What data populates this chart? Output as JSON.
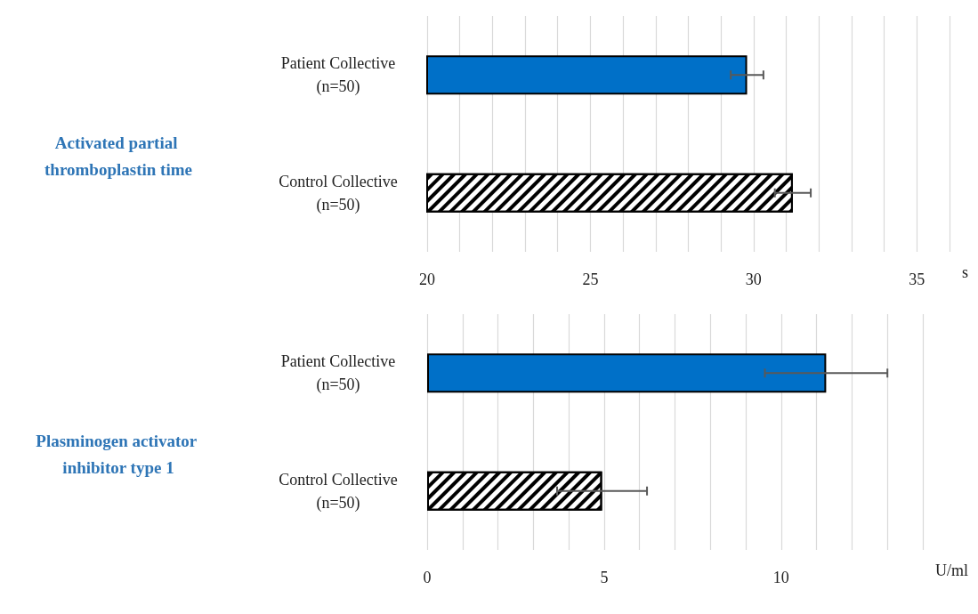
{
  "chart_data": [
    {
      "type": "bar",
      "orientation": "horizontal",
      "title": "Activated partial thromboplastin time",
      "xlabel": "s",
      "categories": [
        "Patient Collective\n(n=50)",
        "Control Collective\n(n=50)"
      ],
      "values": [
        29.8,
        31.2
      ],
      "errors": [
        0.5,
        0.55
      ],
      "colors": [
        "#0070c8",
        "#000000"
      ],
      "xlim": [
        20,
        36
      ],
      "xticks": [
        20,
        {
          "value": 21,
          "label": null
        },
        {
          "value": 22,
          "label": null
        },
        {
          "value": 23,
          "label": null
        },
        {
          "value": 24,
          "label": null
        },
        25,
        {
          "value": 26,
          "label": null
        },
        {
          "value": 27,
          "label": null
        },
        {
          "value": 28,
          "label": null
        },
        {
          "value": 29,
          "label": null
        },
        30,
        {
          "value": 31,
          "label": null
        },
        {
          "value": 32,
          "label": null
        },
        {
          "value": 33,
          "label": null
        },
        {
          "value": 34,
          "label": null
        },
        35,
        {
          "value": 36,
          "label": null
        }
      ],
      "grid": "x"
    },
    {
      "type": "bar",
      "orientation": "horizontal",
      "title": "Plasminogen activator inhibitor type 1",
      "xlabel": "U/ml",
      "categories": [
        "Patient Collective\n(n=50)",
        "Control Collective\n(n=50)"
      ],
      "values": [
        11.27,
        4.94
      ],
      "errors": [
        1.73,
        1.27
      ],
      "colors": [
        "#0070c8",
        "#000000"
      ],
      "xlim": [
        0,
        14
      ],
      "xticks": [
        0,
        {
          "value": 1,
          "label": null
        },
        {
          "value": 2,
          "label": null
        },
        {
          "value": 3,
          "label": null
        },
        {
          "value": 4,
          "label": null
        },
        5,
        {
          "value": 6,
          "label": null
        },
        {
          "value": 7,
          "label": null
        },
        {
          "value": 8,
          "label": null
        },
        {
          "value": 9,
          "label": null
        },
        10,
        {
          "value": 11,
          "label": null
        },
        {
          "value": 12,
          "label": null
        },
        {
          "value": 13,
          "label": null
        },
        {
          "value": 14,
          "label": null
        }
      ],
      "grid": "x"
    }
  ]
}
